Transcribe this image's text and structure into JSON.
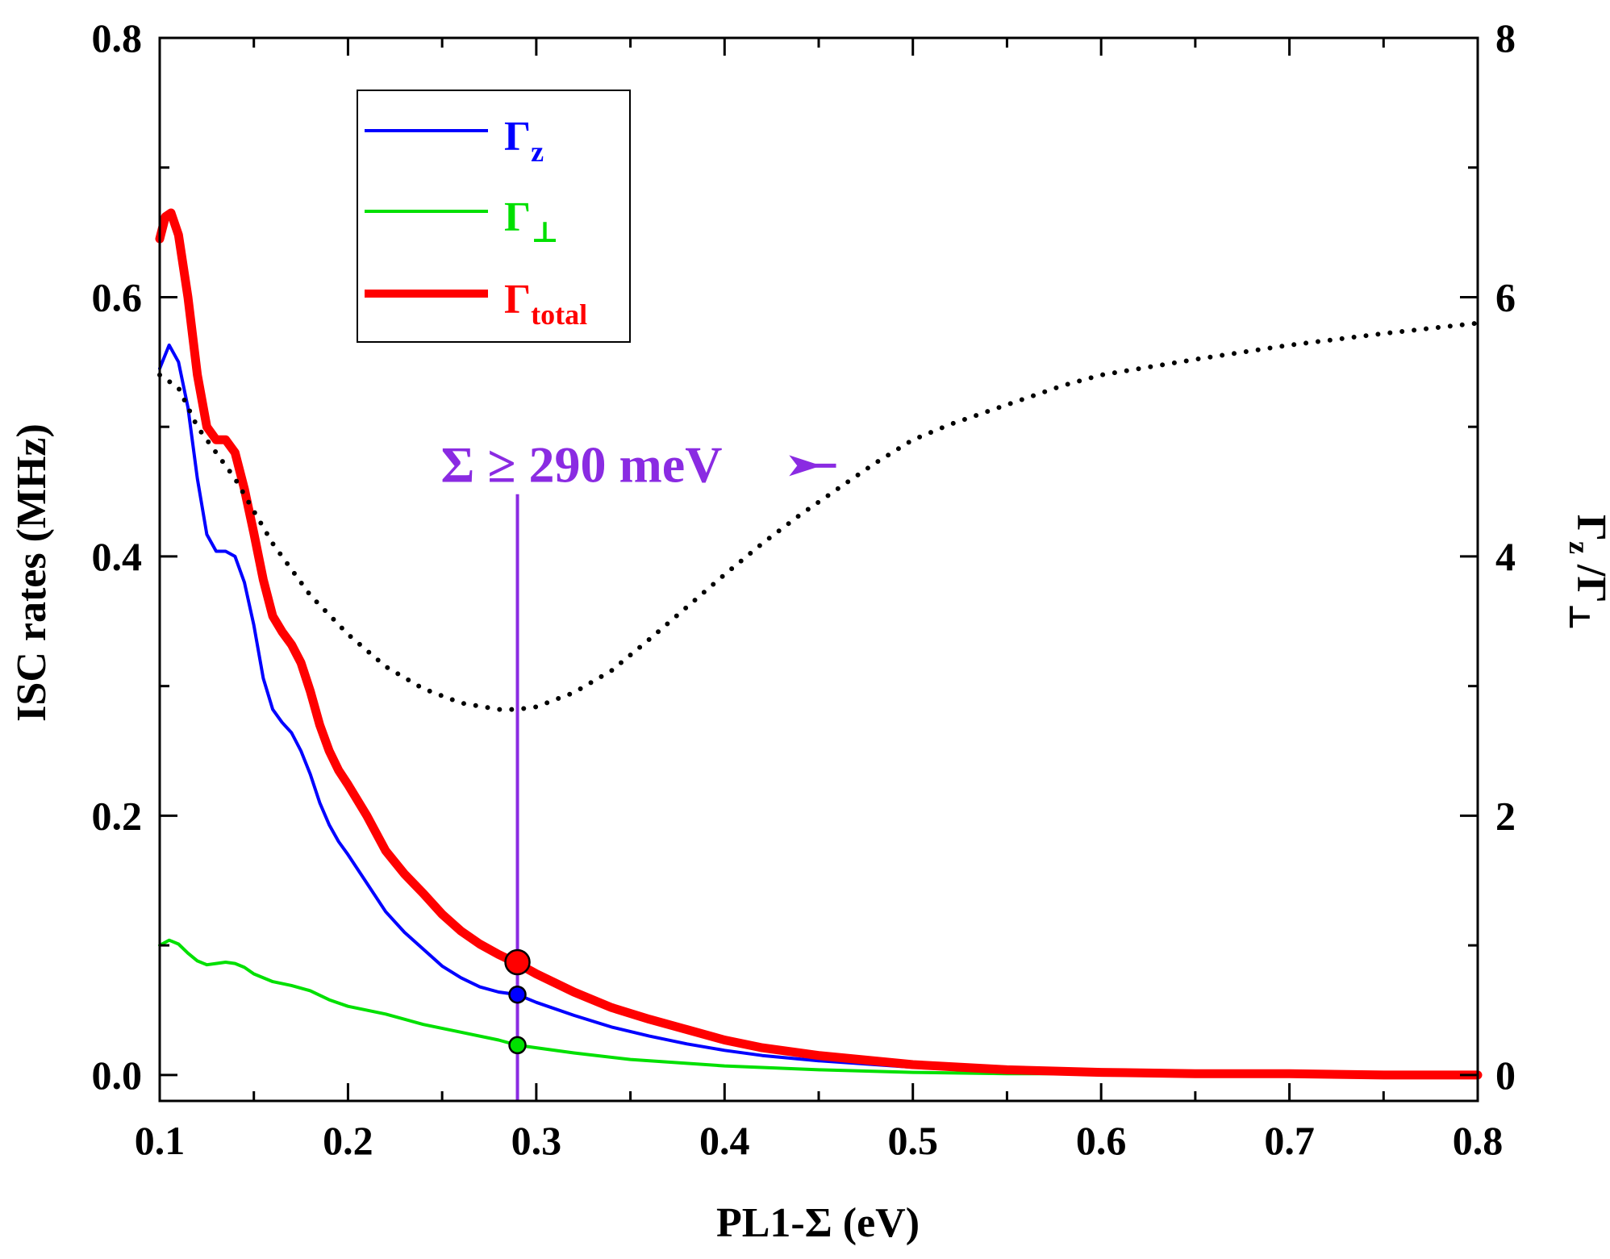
{
  "chart_data": {
    "type": "line",
    "title": "",
    "xlabel": "PL1-Σ (eV)",
    "ylabel": "ISC rates (MHz)",
    "y2label_main": "Γ",
    "y2label_sub1": "z",
    "y2label_mid": " /Γ",
    "y2label_sub2": "⊥",
    "xlim": [
      0.1,
      0.8
    ],
    "ylim": [
      -0.02,
      0.8
    ],
    "y2lim": [
      -0.2,
      8
    ],
    "xticks": [
      0.1,
      0.2,
      0.3,
      0.4,
      0.5,
      0.6,
      0.7,
      0.8
    ],
    "xtick_labels": [
      "0.1",
      "0.2",
      "0.3",
      "0.4",
      "0.5",
      "0.6",
      "0.7",
      "0.8"
    ],
    "yticks": [
      0.0,
      0.2,
      0.4,
      0.6,
      0.8
    ],
    "ytick_labels": [
      "0.0",
      "0.2",
      "0.4",
      "0.6",
      "0.8"
    ],
    "y2ticks": [
      0,
      2,
      4,
      6,
      8
    ],
    "y2tick_labels": [
      "0",
      "2",
      "4",
      "6",
      "8"
    ],
    "legend_position": "top-left",
    "series": [
      {
        "name": "Γz",
        "label_main": "Γ",
        "label_sub": "z",
        "color": "#0000ff",
        "axis": "left",
        "style": "thin",
        "x": [
          0.1,
          0.105,
          0.11,
          0.115,
          0.12,
          0.125,
          0.13,
          0.135,
          0.14,
          0.145,
          0.15,
          0.155,
          0.16,
          0.165,
          0.17,
          0.175,
          0.18,
          0.185,
          0.19,
          0.195,
          0.2,
          0.21,
          0.22,
          0.23,
          0.24,
          0.25,
          0.26,
          0.27,
          0.28,
          0.29,
          0.3,
          0.32,
          0.34,
          0.36,
          0.38,
          0.4,
          0.42,
          0.45,
          0.5,
          0.55,
          0.6,
          0.65,
          0.7,
          0.75,
          0.8
        ],
        "values": [
          0.545,
          0.563,
          0.55,
          0.515,
          0.46,
          0.417,
          0.404,
          0.404,
          0.4,
          0.38,
          0.347,
          0.306,
          0.282,
          0.272,
          0.264,
          0.25,
          0.232,
          0.21,
          0.193,
          0.18,
          0.17,
          0.148,
          0.126,
          0.11,
          0.097,
          0.084,
          0.075,
          0.068,
          0.064,
          0.062,
          0.056,
          0.046,
          0.037,
          0.03,
          0.024,
          0.019,
          0.015,
          0.011,
          0.006,
          0.003,
          0.002,
          0.001,
          0.001,
          0.0,
          0.0
        ]
      },
      {
        "name": "Γ⊥",
        "label_main": "Γ",
        "label_sub": "⊥",
        "color": "#00e000",
        "axis": "left",
        "style": "thin",
        "x": [
          0.1,
          0.105,
          0.11,
          0.115,
          0.12,
          0.125,
          0.13,
          0.135,
          0.14,
          0.145,
          0.15,
          0.16,
          0.17,
          0.18,
          0.19,
          0.2,
          0.22,
          0.24,
          0.26,
          0.28,
          0.29,
          0.3,
          0.32,
          0.35,
          0.4,
          0.45,
          0.5,
          0.55,
          0.6,
          0.7,
          0.8
        ],
        "values": [
          0.1,
          0.104,
          0.101,
          0.094,
          0.088,
          0.085,
          0.086,
          0.087,
          0.086,
          0.083,
          0.078,
          0.072,
          0.069,
          0.065,
          0.058,
          0.053,
          0.047,
          0.039,
          0.033,
          0.027,
          0.023,
          0.021,
          0.017,
          0.012,
          0.007,
          0.004,
          0.002,
          0.001,
          0.001,
          0.0,
          0.0
        ]
      },
      {
        "name": "Γtotal",
        "label_main": "Γ",
        "label_sub": "total",
        "color": "#ff0000",
        "axis": "left",
        "style": "thick",
        "x": [
          0.1,
          0.103,
          0.106,
          0.11,
          0.115,
          0.12,
          0.125,
          0.13,
          0.135,
          0.14,
          0.145,
          0.15,
          0.155,
          0.16,
          0.165,
          0.17,
          0.175,
          0.18,
          0.185,
          0.19,
          0.195,
          0.2,
          0.21,
          0.22,
          0.23,
          0.24,
          0.25,
          0.26,
          0.27,
          0.28,
          0.29,
          0.3,
          0.32,
          0.34,
          0.36,
          0.38,
          0.4,
          0.42,
          0.45,
          0.5,
          0.55,
          0.6,
          0.65,
          0.7,
          0.75,
          0.8
        ],
        "values": [
          0.645,
          0.662,
          0.665,
          0.648,
          0.6,
          0.54,
          0.5,
          0.49,
          0.49,
          0.48,
          0.452,
          0.418,
          0.382,
          0.354,
          0.342,
          0.332,
          0.318,
          0.296,
          0.27,
          0.25,
          0.235,
          0.224,
          0.2,
          0.173,
          0.155,
          0.14,
          0.124,
          0.111,
          0.101,
          0.093,
          0.086,
          0.078,
          0.064,
          0.052,
          0.043,
          0.035,
          0.027,
          0.021,
          0.015,
          0.008,
          0.004,
          0.002,
          0.001,
          0.001,
          0.0,
          0.0
        ]
      },
      {
        "name": "Γz/Γ⊥",
        "color": "#000000",
        "axis": "right",
        "style": "dotted",
        "x": [
          0.1,
          0.11,
          0.12,
          0.13,
          0.14,
          0.15,
          0.16,
          0.18,
          0.2,
          0.22,
          0.24,
          0.26,
          0.28,
          0.29,
          0.3,
          0.32,
          0.34,
          0.36,
          0.38,
          0.4,
          0.42,
          0.44,
          0.46,
          0.48,
          0.5,
          0.52,
          0.54,
          0.56,
          0.58,
          0.6,
          0.65,
          0.7,
          0.75,
          0.8
        ],
        "values": [
          5.4,
          5.3,
          5.0,
          4.8,
          4.6,
          4.35,
          4.1,
          3.7,
          3.4,
          3.15,
          2.98,
          2.87,
          2.82,
          2.82,
          2.84,
          2.95,
          3.12,
          3.36,
          3.61,
          3.86,
          4.1,
          4.32,
          4.52,
          4.72,
          4.9,
          5.02,
          5.12,
          5.22,
          5.32,
          5.4,
          5.52,
          5.63,
          5.72,
          5.8
        ]
      }
    ],
    "markers": [
      {
        "name": "total-marker",
        "x": 0.29,
        "y": 0.087,
        "color": "#ff0000",
        "size": "large"
      },
      {
        "name": "gz-marker",
        "x": 0.29,
        "y": 0.062,
        "color": "#0000ff",
        "size": "small"
      },
      {
        "name": "gperp-marker",
        "x": 0.29,
        "y": 0.023,
        "color": "#00e000",
        "size": "small"
      }
    ],
    "threshold": {
      "x": 0.29,
      "y_top": 0.448,
      "color": "#8a2be2"
    },
    "annotation": {
      "text": "Σ ≥ 290 meV",
      "color": "#8a2be2",
      "x": 0.29,
      "y": 0.47,
      "arrow_to_x": 0.4
    }
  }
}
